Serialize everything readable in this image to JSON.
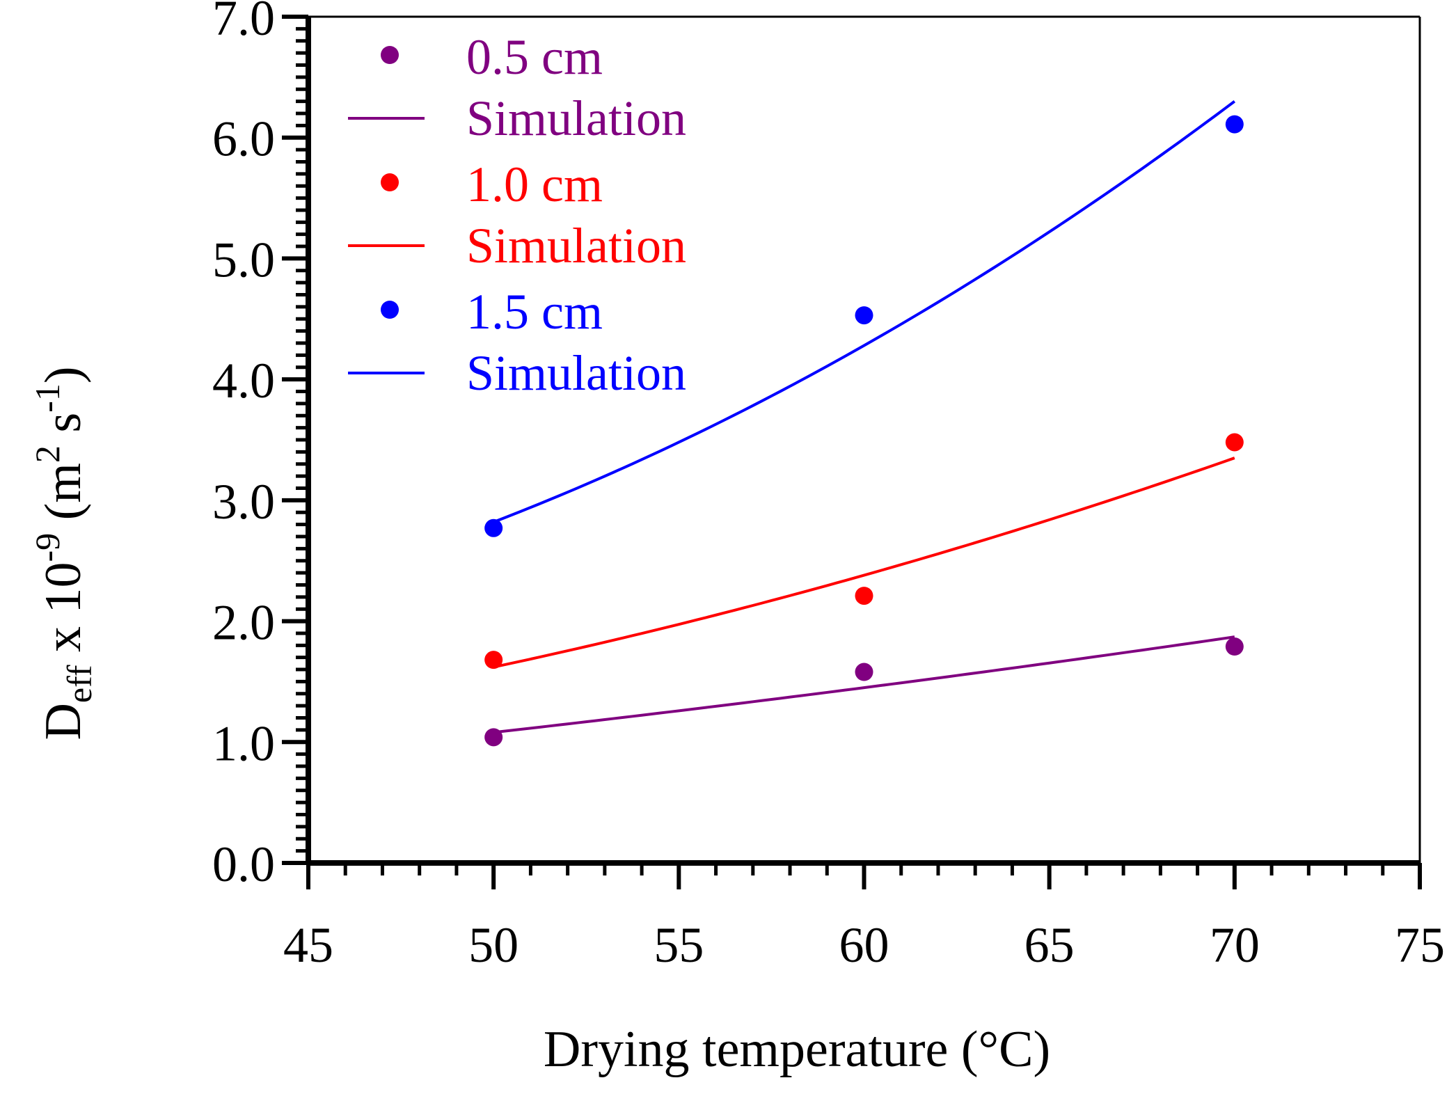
{
  "chart_data": {
    "type": "line",
    "title": "",
    "xlabel": "Drying temperature (°C)",
    "ylabel": {
      "base": "D",
      "base_sub": "eff",
      "mid": " x 10",
      "exp": "-9",
      "unit_open": " (m",
      "unit_exp1": "2",
      "unit_mid": " s",
      "unit_exp2": "-1",
      "unit_close": ")"
    },
    "xlim": [
      45,
      75
    ],
    "ylim": [
      0.0,
      7.0
    ],
    "xticks": [
      45,
      50,
      55,
      60,
      65,
      70,
      75
    ],
    "yticks": [
      0.0,
      1.0,
      2.0,
      3.0,
      4.0,
      5.0,
      6.0,
      7.0
    ],
    "xtick_labels": [
      "45",
      "50",
      "55",
      "60",
      "65",
      "70",
      "75"
    ],
    "ytick_labels": [
      "0.0",
      "1.0",
      "2.0",
      "3.0",
      "4.0",
      "5.0",
      "6.0",
      "7.0"
    ],
    "x_minor_step": 1,
    "y_minor_step": 0.1,
    "legend_position": "top-left",
    "series": [
      {
        "name": "0.5 cm",
        "sim_name": "Simulation",
        "color": "#800080",
        "x": [
          50,
          60,
          70
        ],
        "experimental": [
          1.04,
          1.58,
          1.79
        ],
        "simulation": [
          1.08,
          1.45,
          1.87
        ]
      },
      {
        "name": "1.0 cm",
        "sim_name": "Simulation",
        "color": "#ff0000",
        "x": [
          50,
          60,
          70
        ],
        "experimental": [
          1.68,
          2.21,
          3.48
        ],
        "simulation": [
          1.62,
          2.38,
          3.35
        ]
      },
      {
        "name": "1.5 cm",
        "sim_name": "Simulation",
        "color": "#0000ff",
        "x": [
          50,
          60,
          70
        ],
        "experimental": [
          2.77,
          4.53,
          6.11
        ],
        "simulation": [
          2.82,
          4.28,
          6.3
        ]
      }
    ]
  }
}
